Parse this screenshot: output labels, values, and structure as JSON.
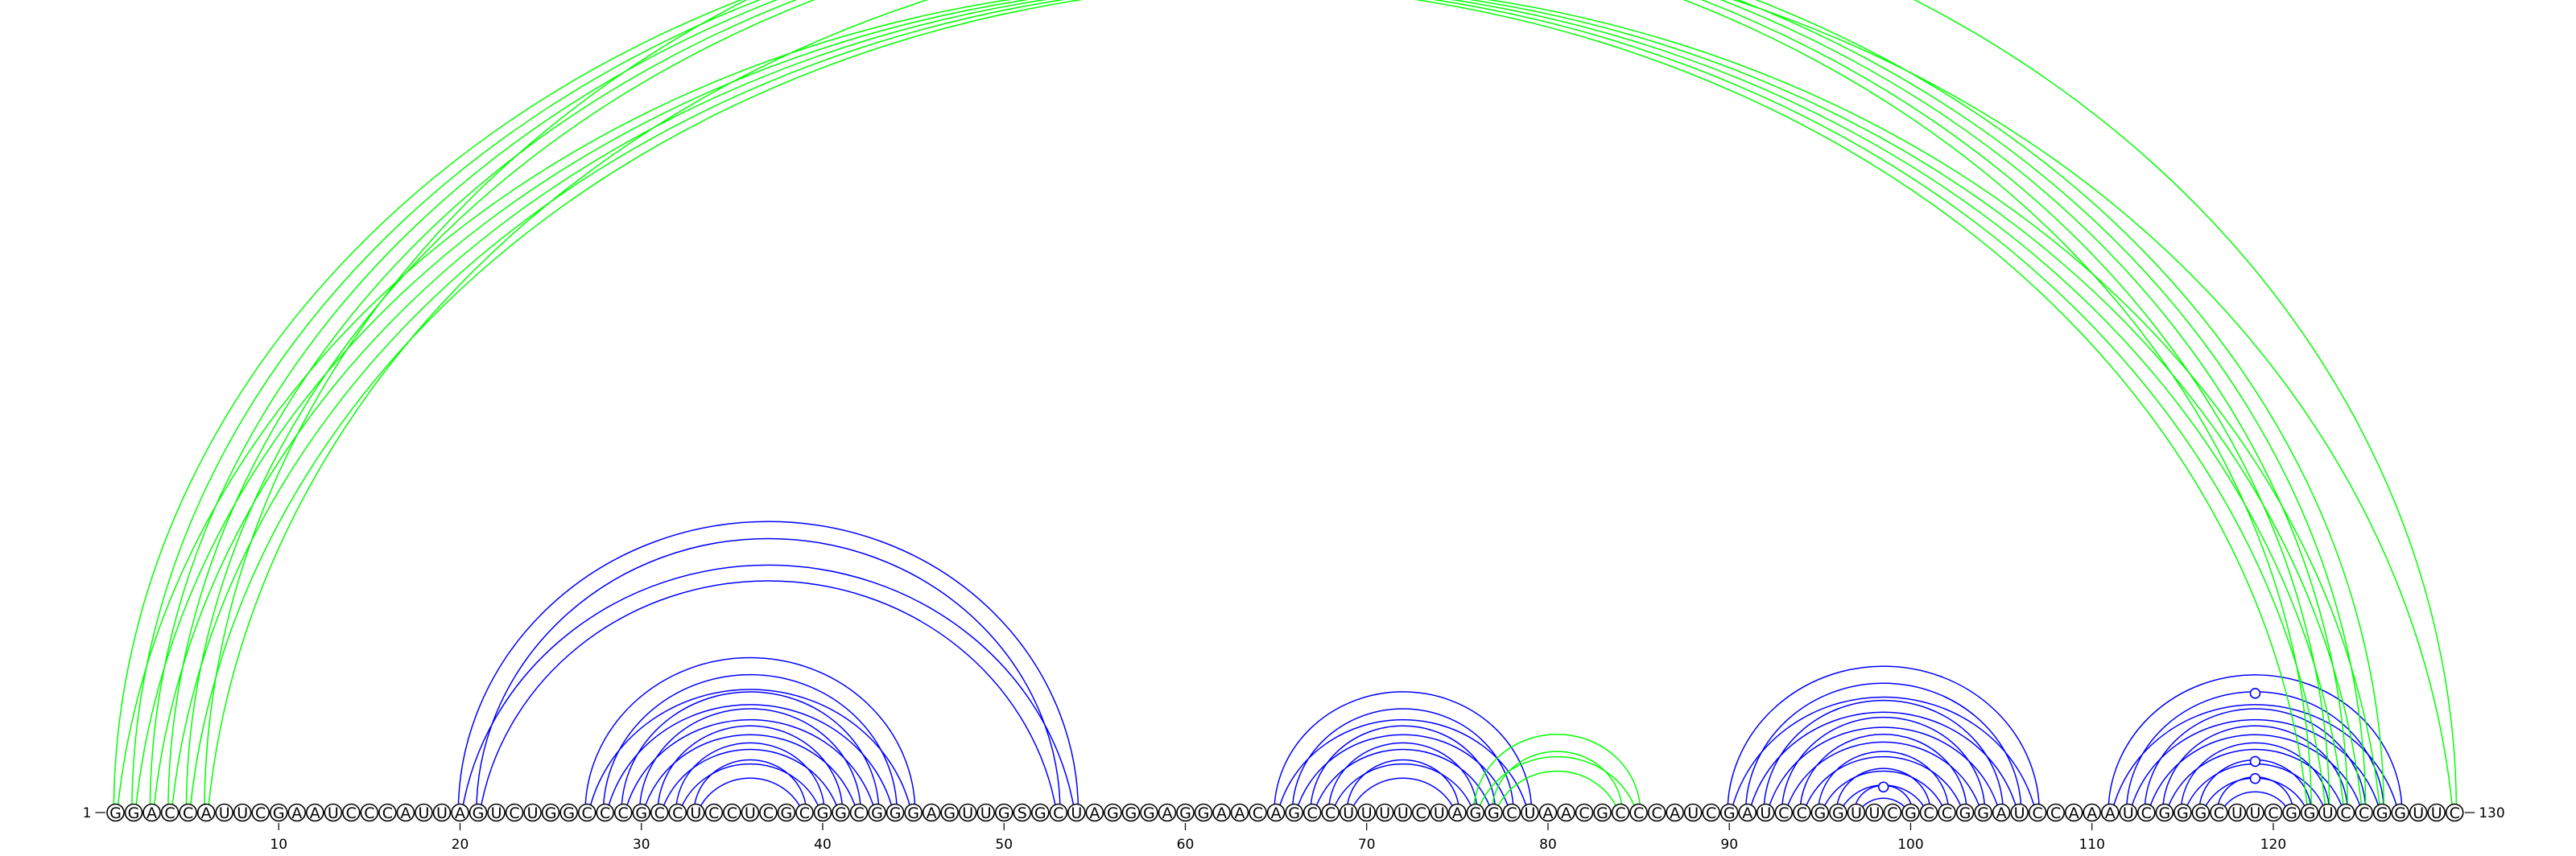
{
  "sequence": "GGACCAUUCGAAUCCCAUUAGUCUGGCCCGCCUCCUCGCGGCGGGAGUUGSGCUAGGGAGGAACAGCCUUUUCUAGGCUAACGCCCAUCGAUCCGGUUCGCCGGAUCCAAAUCGGGCUUCGGUCCGGUUC",
  "start_label": "1",
  "end_label": "130",
  "ticks": [
    {
      "pos": 10,
      "label": "10"
    },
    {
      "pos": 20,
      "label": "20"
    },
    {
      "pos": 30,
      "label": "30"
    },
    {
      "pos": 40,
      "label": "40"
    },
    {
      "pos": 50,
      "label": "50"
    },
    {
      "pos": 60,
      "label": "60"
    },
    {
      "pos": 70,
      "label": "70"
    },
    {
      "pos": 80,
      "label": "80"
    },
    {
      "pos": 90,
      "label": "90"
    },
    {
      "pos": 100,
      "label": "100"
    },
    {
      "pos": 110,
      "label": "110"
    },
    {
      "pos": 120,
      "label": "120"
    }
  ],
  "colors": {
    "secondary_structure": "#0000ff",
    "long_range": "#00ff00"
  },
  "pairs": [
    {
      "i": 20,
      "j": 54,
      "type": "blue"
    },
    {
      "i": 21,
      "j": 53,
      "type": "blue"
    },
    {
      "i": 27,
      "j": 45,
      "type": "blue"
    },
    {
      "i": 28,
      "j": 44,
      "type": "blue"
    },
    {
      "i": 29,
      "j": 43,
      "type": "blue"
    },
    {
      "i": 30,
      "j": 42,
      "type": "blue"
    },
    {
      "i": 31,
      "j": 41,
      "type": "blue"
    },
    {
      "i": 32,
      "j": 40,
      "type": "blue"
    },
    {
      "i": 33,
      "j": 39,
      "type": "blue"
    },
    {
      "i": 65,
      "j": 79,
      "type": "blue"
    },
    {
      "i": 66,
      "j": 78,
      "type": "blue"
    },
    {
      "i": 67,
      "j": 77,
      "type": "blue"
    },
    {
      "i": 68,
      "j": 76,
      "type": "blue"
    },
    {
      "i": 69,
      "j": 75,
      "type": "blue"
    },
    {
      "i": 90,
      "j": 107,
      "type": "blue"
    },
    {
      "i": 91,
      "j": 106,
      "type": "blue"
    },
    {
      "i": 92,
      "j": 105,
      "type": "blue"
    },
    {
      "i": 93,
      "j": 104,
      "type": "blue"
    },
    {
      "i": 94,
      "j": 103,
      "type": "blue"
    },
    {
      "i": 95,
      "j": 102,
      "type": "blue"
    },
    {
      "i": 96,
      "j": 101,
      "type": "blue"
    },
    {
      "i": 97,
      "j": 100,
      "type": "blue",
      "mark": "circle"
    },
    {
      "i": 111,
      "j": 127,
      "type": "blue"
    },
    {
      "i": 112,
      "j": 126,
      "type": "blue",
      "mark": "circle"
    },
    {
      "i": 113,
      "j": 125,
      "type": "blue"
    },
    {
      "i": 114,
      "j": 124,
      "type": "blue"
    },
    {
      "i": 115,
      "j": 123,
      "type": "blue"
    },
    {
      "i": 116,
      "j": 122,
      "type": "blue",
      "mark": "circle"
    },
    {
      "i": 117,
      "j": 121,
      "type": "blue",
      "mark": "circle"
    },
    {
      "i": 76,
      "j": 85,
      "type": "green"
    },
    {
      "i": 77,
      "j": 84,
      "type": "green"
    },
    {
      "i": 1,
      "j": 122,
      "type": "green"
    },
    {
      "i": 2,
      "j": 123,
      "type": "green"
    },
    {
      "i": 3,
      "j": 124,
      "type": "green"
    },
    {
      "i": 4,
      "j": 125,
      "type": "green"
    },
    {
      "i": 5,
      "j": 126,
      "type": "green"
    },
    {
      "i": 6,
      "j": 130,
      "type": "green",
      "mark": "circle"
    }
  ]
}
